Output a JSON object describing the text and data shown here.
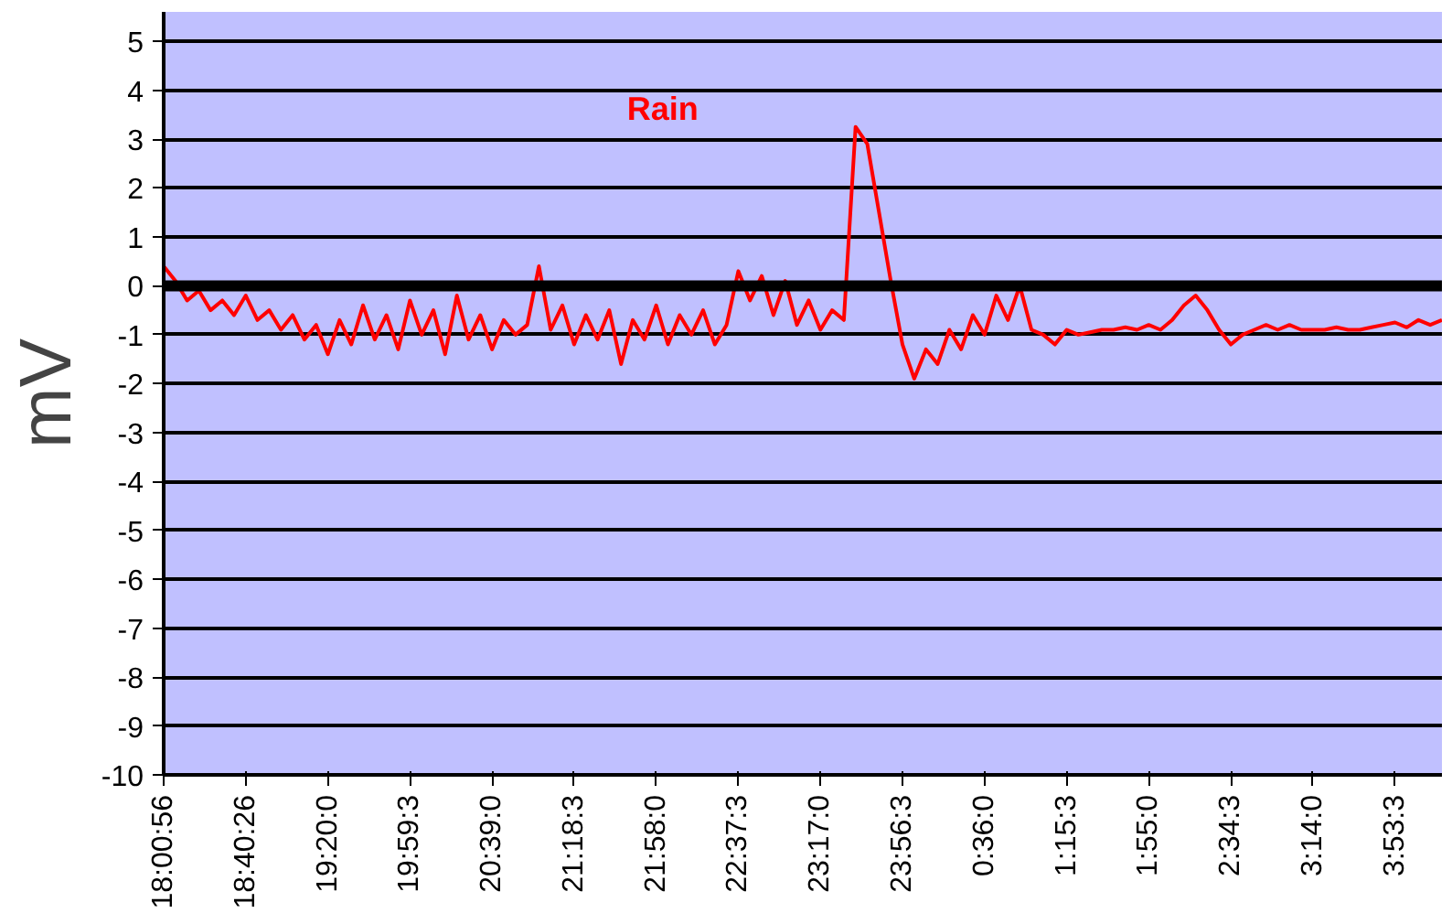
{
  "chart_data": {
    "type": "line",
    "ylabel": "mV",
    "grid": "y",
    "legend": false,
    "marker": "none",
    "line_style": "solid",
    "categories": [
      "18:00:56",
      null,
      null,
      null,
      null,
      null,
      null,
      "18:40:26",
      null,
      null,
      null,
      null,
      null,
      null,
      "19:20:0",
      null,
      null,
      null,
      null,
      null,
      null,
      "19:59:3",
      null,
      null,
      null,
      null,
      null,
      null,
      "20:39:0",
      null,
      null,
      null,
      null,
      null,
      null,
      "21:18:3",
      null,
      null,
      null,
      null,
      null,
      null,
      "21:58:0",
      null,
      null,
      null,
      null,
      null,
      null,
      "22:37:3",
      null,
      null,
      null,
      null,
      null,
      null,
      "23:17:0",
      null,
      null,
      null,
      null,
      null,
      null,
      "23:56:3",
      null,
      null,
      null,
      null,
      null,
      null,
      "0:36:0",
      null,
      null,
      null,
      null,
      null,
      null,
      "1:15:3",
      null,
      null,
      null,
      null,
      null,
      null,
      "1:55:0",
      null,
      null,
      null,
      null,
      null,
      null,
      "2:34:3",
      null,
      null,
      null,
      null,
      null,
      null,
      "3:14:0",
      null,
      null,
      null,
      null,
      null,
      null,
      "3:53:3",
      null,
      null,
      null,
      null
    ],
    "ylim": [
      -10,
      5.6
    ],
    "yticks": [
      -10,
      -9,
      -8,
      -7,
      -6,
      -5,
      -4,
      -3,
      -2,
      -1,
      0,
      1,
      2,
      3,
      4,
      5
    ],
    "ref_lines": [
      {
        "axis": "y",
        "value": 0,
        "color": "#000000"
      }
    ],
    "series": [
      {
        "name": "Rain",
        "color": "#ff0000",
        "values": [
          0.4,
          0.1,
          -0.3,
          -0.1,
          -0.5,
          -0.3,
          -0.6,
          -0.2,
          -0.7,
          -0.5,
          -0.9,
          -0.6,
          -1.1,
          -0.8,
          -1.4,
          -0.7,
          -1.2,
          -0.4,
          -1.1,
          -0.6,
          -1.3,
          -0.3,
          -1.0,
          -0.5,
          -1.4,
          -0.2,
          -1.1,
          -0.6,
          -1.3,
          -0.7,
          -1.0,
          -0.8,
          0.4,
          -0.9,
          -0.4,
          -1.2,
          -0.6,
          -1.1,
          -0.5,
          -1.6,
          -0.7,
          -1.1,
          -0.4,
          -1.2,
          -0.6,
          -1.0,
          -0.5,
          -1.2,
          -0.8,
          0.3,
          -0.3,
          0.2,
          -0.6,
          0.1,
          -0.8,
          -0.3,
          -0.9,
          -0.5,
          -0.7,
          3.25,
          2.9,
          1.5,
          0.1,
          -1.2,
          -1.9,
          -1.3,
          -1.6,
          -0.9,
          -1.3,
          -0.6,
          -1.0,
          -0.2,
          -0.7,
          0.0,
          -0.9,
          -1.0,
          -1.2,
          -0.9,
          -1.0,
          -0.95,
          -0.9,
          -0.9,
          -0.85,
          -0.9,
          -0.8,
          -0.9,
          -0.7,
          -0.4,
          -0.2,
          -0.5,
          -0.9,
          -1.2,
          -1.0,
          -0.9,
          -0.8,
          -0.9,
          -0.8,
          -0.9,
          -0.9,
          -0.9,
          -0.85,
          -0.9,
          -0.9,
          -0.85,
          -0.8,
          -0.75,
          -0.85,
          -0.7,
          -0.8,
          -0.7
        ]
      }
    ]
  }
}
